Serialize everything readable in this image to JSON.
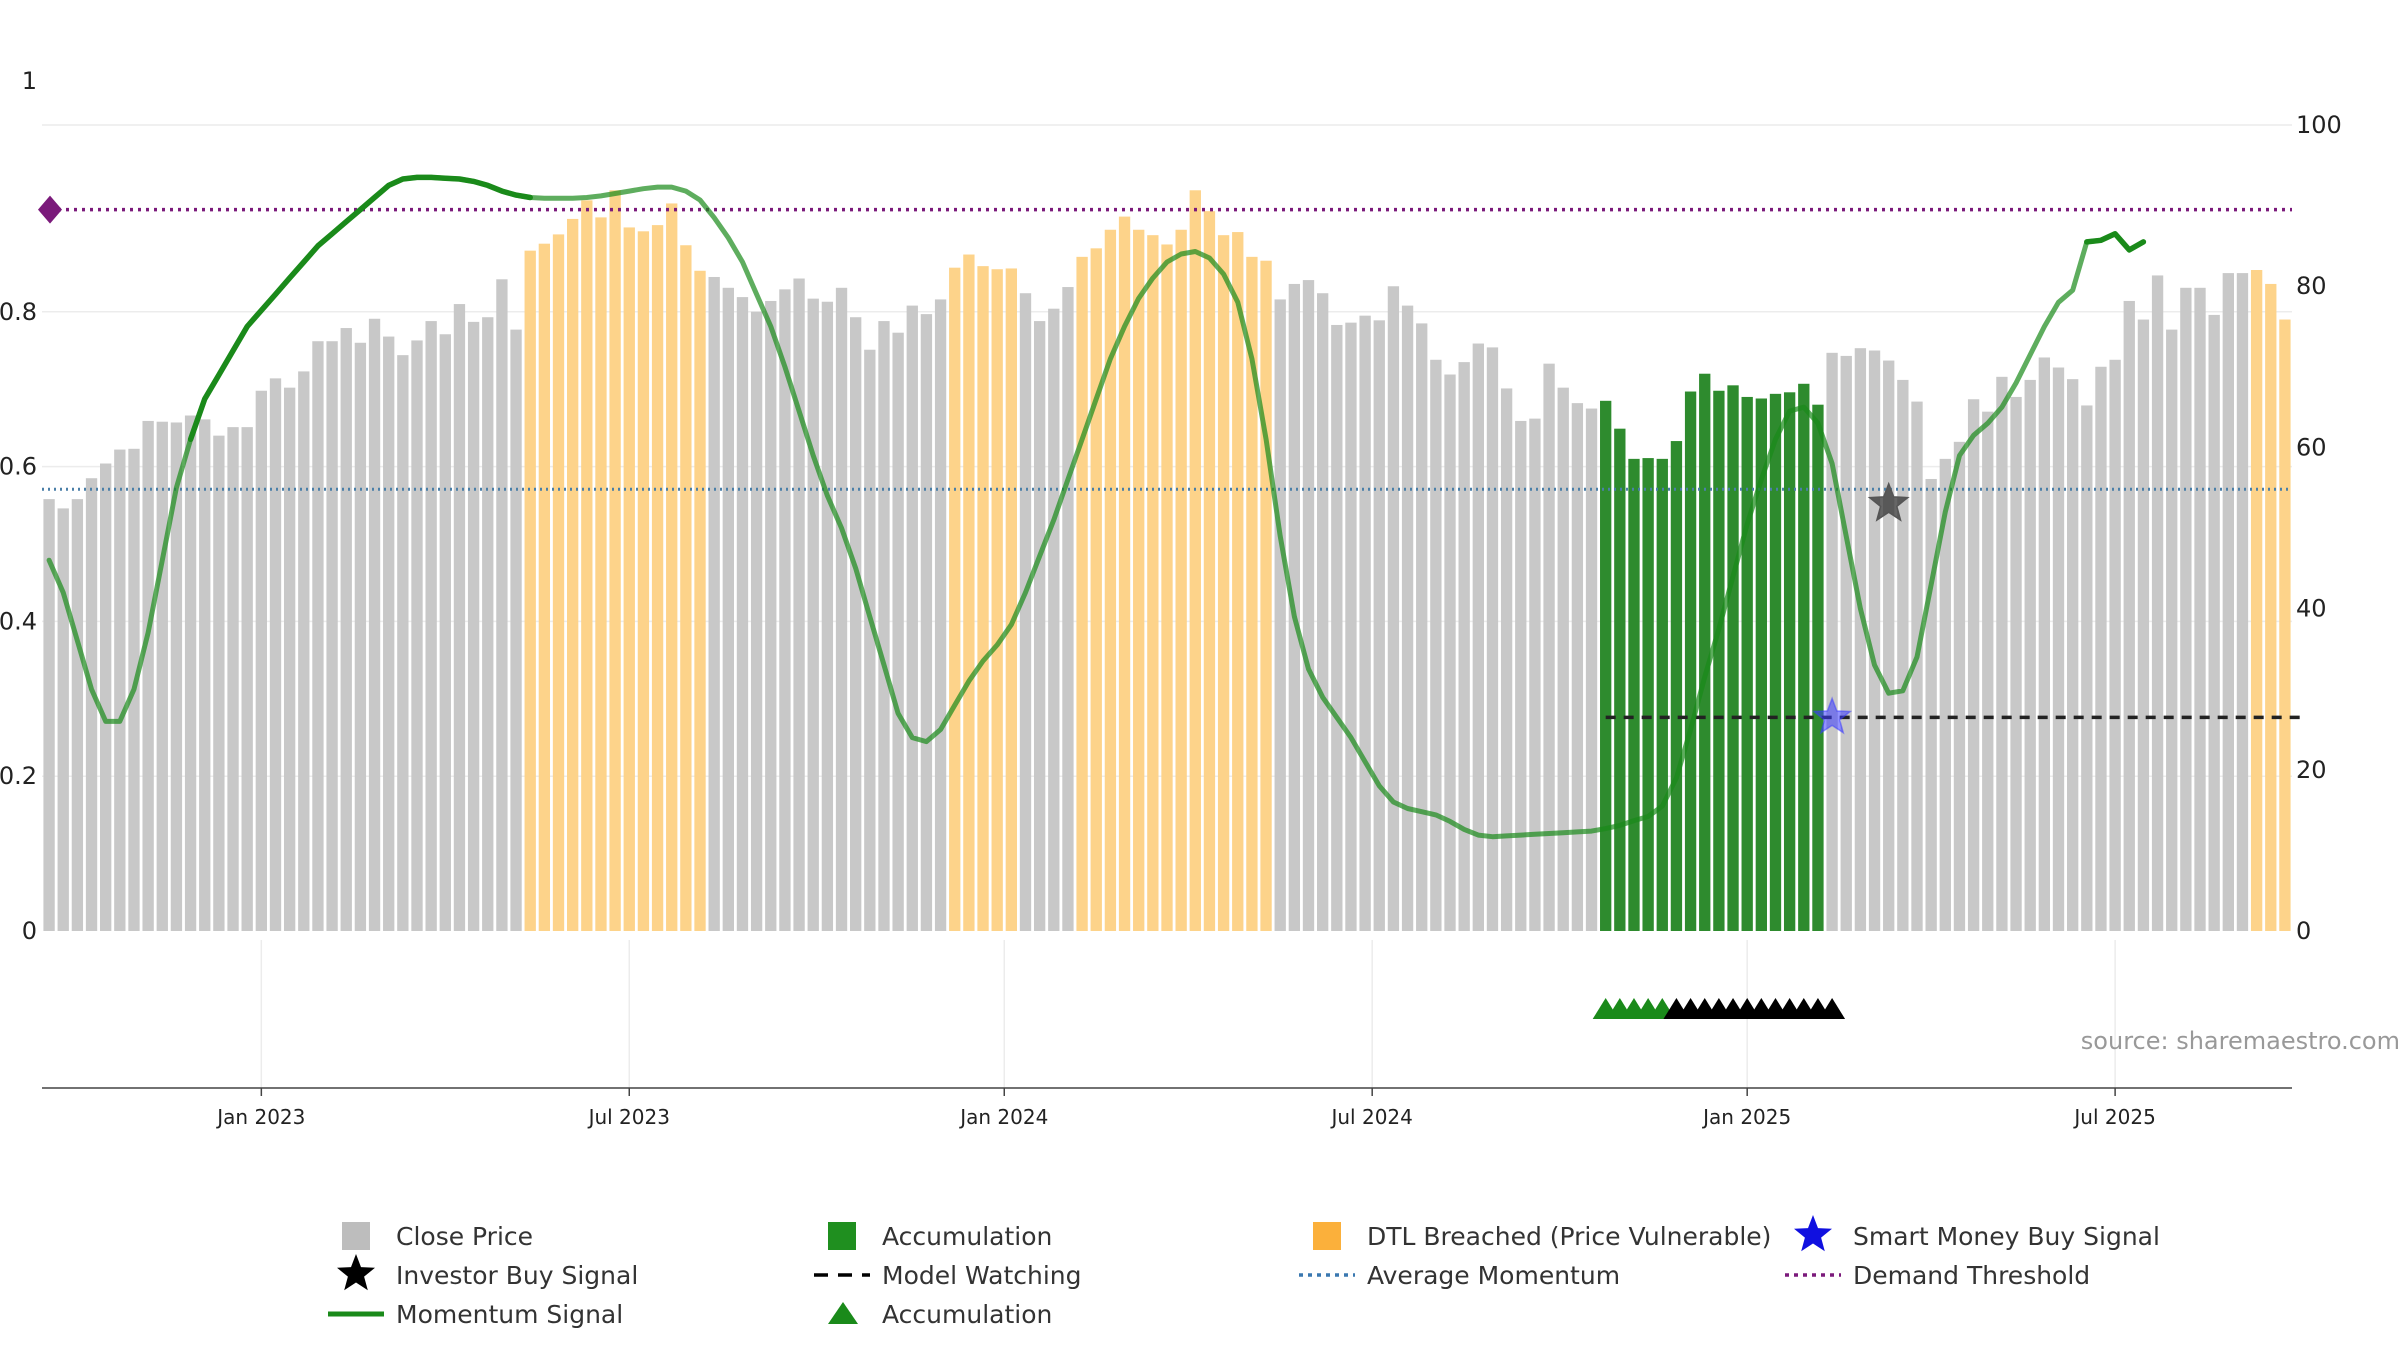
{
  "chart_data": {
    "type": "bar",
    "title": "",
    "source": "source: sharemaestro.com",
    "left_axis": {
      "ticks": [
        {
          "value": 0,
          "label": "0"
        },
        {
          "value": 0.2,
          "label": "0.2"
        },
        {
          "value": 0.4,
          "label": "0.4"
        },
        {
          "value": 0.6,
          "label": "0.6"
        },
        {
          "value": 0.8,
          "label": "0.8"
        },
        {
          "value": 1,
          "label": "1"
        }
      ],
      "range": [
        0,
        1.1
      ]
    },
    "right_axis": {
      "ticks": [
        {
          "value": 0,
          "label": "0"
        },
        {
          "value": 20,
          "label": "20"
        },
        {
          "value": 40,
          "label": "40"
        },
        {
          "value": 60,
          "label": "60"
        },
        {
          "value": 80,
          "label": "80"
        },
        {
          "value": 100,
          "label": "100"
        }
      ],
      "range": [
        0,
        100
      ]
    },
    "x_axis": {
      "ticks": [
        {
          "bar": 15.5,
          "label": "Jan 2023"
        },
        {
          "bar": 41.5,
          "label": "Jul 2023"
        },
        {
          "bar": 68,
          "label": "Jan 2024"
        },
        {
          "bar": 94,
          "label": "Jul 2024"
        },
        {
          "bar": 120.5,
          "label": "Jan 2025"
        },
        {
          "bar": 146.5,
          "label": "Jul 2025"
        }
      ]
    },
    "bar_values": [
      0.558,
      0.546,
      0.558,
      0.585,
      0.604,
      0.622,
      0.623,
      0.659,
      0.658,
      0.657,
      0.666,
      0.661,
      0.64,
      0.651,
      0.651,
      0.698,
      0.714,
      0.702,
      0.723,
      0.762,
      0.762,
      0.779,
      0.76,
      0.791,
      0.768,
      0.744,
      0.763,
      0.788,
      0.771,
      0.81,
      0.787,
      0.793,
      0.842,
      0.777,
      0.879,
      0.888,
      0.9,
      0.92,
      0.944,
      0.922,
      0.957,
      0.909,
      0.904,
      0.912,
      0.94,
      0.886,
      0.853,
      0.845,
      0.831,
      0.819,
      0.8,
      0.814,
      0.829,
      0.843,
      0.817,
      0.813,
      0.831,
      0.793,
      0.751,
      0.788,
      0.773,
      0.808,
      0.797,
      0.816,
      0.857,
      0.874,
      0.859,
      0.855,
      0.856,
      0.824,
      0.788,
      0.804,
      0.832,
      0.871,
      0.882,
      0.906,
      0.923,
      0.906,
      0.899,
      0.887,
      0.906,
      0.957,
      0.93,
      0.899,
      0.903,
      0.871,
      0.866,
      0.816,
      0.836,
      0.841,
      0.824,
      0.783,
      0.786,
      0.795,
      0.789,
      0.833,
      0.808,
      0.785,
      0.738,
      0.719,
      0.735,
      0.759,
      0.754,
      0.701,
      0.659,
      0.662,
      0.733,
      0.702,
      0.682,
      0.675,
      0.685,
      0.649,
      0.61,
      0.611,
      0.61,
      0.633,
      0.697,
      0.72,
      0.698,
      0.705,
      0.69,
      0.688,
      0.694,
      0.696,
      0.707,
      0.68,
      0.747,
      0.743,
      0.753,
      0.75,
      0.737,
      0.712,
      0.684,
      0.584,
      0.61,
      0.632,
      0.687,
      0.671,
      0.716,
      0.69,
      0.712,
      0.741,
      0.728,
      0.713,
      0.679,
      0.729,
      0.738,
      0.814,
      0.79,
      0.847,
      0.777,
      0.831,
      0.831,
      0.796,
      0.85,
      0.85,
      0.854,
      0.836,
      0.79
    ],
    "bar_categories": [
      "Close Price",
      "Accumulation",
      "DTL Breached (Price Vulnerable)"
    ],
    "bar_category_runs": [
      {
        "from": 0,
        "to": 33,
        "category": "Close Price"
      },
      {
        "from": 34,
        "to": 46,
        "category": "DTL Breached (Price Vulnerable)"
      },
      {
        "from": 47,
        "to": 63,
        "category": "Close Price"
      },
      {
        "from": 64,
        "to": 68,
        "category": "DTL Breached (Price Vulnerable)"
      },
      {
        "from": 69,
        "to": 72,
        "category": "Close Price"
      },
      {
        "from": 73,
        "to": 86,
        "category": "DTL Breached (Price Vulnerable)"
      },
      {
        "from": 87,
        "to": 109,
        "category": "Close Price"
      },
      {
        "from": 110,
        "to": 125,
        "category": "Accumulation"
      },
      {
        "from": 126,
        "to": 155,
        "category": "Close Price"
      },
      {
        "from": 156,
        "to": 158,
        "category": "DTL Breached (Price Vulnerable)"
      },
      {
        "from": 159,
        "to": 159,
        "category": "Close Price"
      }
    ],
    "momentum_signal": [
      [
        0,
        46
      ],
      [
        1,
        42
      ],
      [
        2,
        36
      ],
      [
        3,
        30
      ],
      [
        4,
        26
      ],
      [
        5,
        26
      ],
      [
        6,
        30
      ],
      [
        7,
        37
      ],
      [
        8,
        46
      ],
      [
        9,
        55
      ],
      [
        10,
        61
      ],
      [
        11,
        66
      ],
      [
        12,
        69
      ],
      [
        13,
        72
      ],
      [
        14,
        75
      ],
      [
        15,
        77
      ],
      [
        16,
        79
      ],
      [
        17,
        81
      ],
      [
        18,
        83
      ],
      [
        19,
        85
      ],
      [
        20,
        86.5
      ],
      [
        21,
        88
      ],
      [
        22,
        89.5
      ],
      [
        23,
        91
      ],
      [
        24,
        92.5
      ],
      [
        25,
        93.3
      ],
      [
        26,
        93.5
      ],
      [
        27,
        93.5
      ],
      [
        28,
        93.4
      ],
      [
        29,
        93.3
      ],
      [
        30,
        93
      ],
      [
        31,
        92.5
      ],
      [
        32,
        91.8
      ],
      [
        33,
        91.3
      ],
      [
        34,
        91
      ],
      [
        35,
        90.9
      ],
      [
        36,
        90.9
      ],
      [
        37,
        90.9
      ],
      [
        38,
        91
      ],
      [
        39,
        91.2
      ],
      [
        40,
        91.5
      ],
      [
        41,
        91.8
      ],
      [
        42,
        92.1
      ],
      [
        43,
        92.3
      ],
      [
        44,
        92.3
      ],
      [
        45,
        91.8
      ],
      [
        46,
        90.7
      ],
      [
        47,
        88.5
      ],
      [
        48,
        86
      ],
      [
        49,
        83
      ],
      [
        50,
        79
      ],
      [
        51,
        75
      ],
      [
        52,
        70
      ],
      [
        53,
        64.5
      ],
      [
        54,
        59
      ],
      [
        55,
        54
      ],
      [
        56,
        50
      ],
      [
        57,
        45
      ],
      [
        58,
        39
      ],
      [
        59,
        33
      ],
      [
        60,
        27
      ],
      [
        61,
        24
      ],
      [
        62,
        23.5
      ],
      [
        63,
        25
      ],
      [
        64,
        28
      ],
      [
        65,
        31
      ],
      [
        66,
        33.5
      ],
      [
        67,
        35.5
      ],
      [
        68,
        38
      ],
      [
        69,
        42
      ],
      [
        70,
        46.5
      ],
      [
        71,
        51
      ],
      [
        72,
        56
      ],
      [
        73,
        61
      ],
      [
        74,
        66
      ],
      [
        75,
        71
      ],
      [
        76,
        75
      ],
      [
        77,
        78.5
      ],
      [
        78,
        81
      ],
      [
        79,
        83
      ],
      [
        80,
        84
      ],
      [
        81,
        84.3
      ],
      [
        82,
        83.5
      ],
      [
        83,
        81.5
      ],
      [
        84,
        78
      ],
      [
        85,
        71
      ],
      [
        86,
        61
      ],
      [
        87,
        49
      ],
      [
        88,
        39
      ],
      [
        89,
        32.5
      ],
      [
        90,
        29
      ],
      [
        91,
        26.5
      ],
      [
        92,
        24
      ],
      [
        93,
        21
      ],
      [
        94,
        18
      ],
      [
        95,
        16
      ],
      [
        96,
        15.2
      ],
      [
        97,
        14.8
      ],
      [
        98,
        14.4
      ],
      [
        99,
        13.6
      ],
      [
        100,
        12.6
      ],
      [
        101,
        11.9
      ],
      [
        102,
        11.7
      ],
      [
        103,
        11.8
      ],
      [
        104,
        11.9
      ],
      [
        105,
        12
      ],
      [
        106,
        12.1
      ],
      [
        107,
        12.2
      ],
      [
        108,
        12.3
      ],
      [
        109,
        12.4
      ],
      [
        110,
        12.7
      ],
      [
        111,
        13.1
      ],
      [
        112,
        13.7
      ],
      [
        113,
        14.2
      ],
      [
        114,
        15.5
      ],
      [
        115,
        19
      ],
      [
        116,
        25
      ],
      [
        117,
        31.5
      ],
      [
        118,
        37.5
      ],
      [
        119,
        44
      ],
      [
        120,
        50.5
      ],
      [
        121,
        56
      ],
      [
        122,
        61
      ],
      [
        123,
        64.5
      ],
      [
        124,
        65
      ],
      [
        125,
        63
      ],
      [
        126,
        58
      ],
      [
        127,
        49
      ],
      [
        128,
        40
      ],
      [
        129,
        33
      ],
      [
        130,
        29.5
      ],
      [
        131,
        29.8
      ],
      [
        132,
        34
      ],
      [
        133,
        43
      ],
      [
        134,
        52
      ],
      [
        135,
        59
      ],
      [
        136,
        61.5
      ],
      [
        137,
        63
      ],
      [
        138,
        65
      ],
      [
        139,
        68
      ],
      [
        140,
        71.5
      ],
      [
        141,
        75
      ],
      [
        142,
        78
      ],
      [
        143,
        79.5
      ],
      [
        144,
        85.5
      ],
      [
        145,
        85.7
      ],
      [
        146,
        86.5
      ],
      [
        147,
        84.5
      ],
      [
        148,
        85.5
      ]
    ],
    "momentum_bold_ranges": [
      [
        10,
        34
      ],
      [
        144,
        148
      ]
    ],
    "average_momentum": 54.8,
    "demand_threshold": 89.5,
    "model_watching": {
      "from": 110,
      "to": 160,
      "value": 26.5
    },
    "smart_money_buy_signal": {
      "x": 126,
      "y": 26.5
    },
    "investor_buy_signal": {
      "x": 130,
      "y": 53
    },
    "accumulation_markers": {
      "green": [
        110,
        111,
        112,
        113,
        114
      ],
      "black": [
        115,
        116,
        117,
        118,
        119,
        120,
        121,
        122,
        123,
        124,
        125,
        126
      ]
    },
    "demand_threshold_marker": {
      "x": 0,
      "y": 89.5
    },
    "colors": {
      "close_price": "#c8c8c8",
      "accumulation": "#2e8b2e",
      "dtl_breached": "#fdd38a",
      "momentum": "#1a8a1a",
      "average_momentum": "#4a7fa8",
      "demand_threshold": "#7b1a7b",
      "smart_money": "#3a3aff",
      "investor_buy": "#333333",
      "model_watching": "#222222"
    },
    "grid": true,
    "legend_placement": "bottom",
    "legend": [
      {
        "label": "Close Price",
        "icon": "gray-square"
      },
      {
        "label": "Accumulation",
        "icon": "green-square"
      },
      {
        "label": "DTL Breached (Price Vulnerable)",
        "icon": "orange-square"
      },
      {
        "label": "Smart Money Buy Signal",
        "icon": "blue-star"
      },
      {
        "label": "Investor Buy Signal",
        "icon": "black-star"
      },
      {
        "label": "Model Watching",
        "icon": "black-dash"
      },
      {
        "label": "Average Momentum",
        "icon": "blue-dotted"
      },
      {
        "label": "Demand Threshold",
        "icon": "purple-dotted"
      },
      {
        "label": "Momentum Signal",
        "icon": "green-line"
      },
      {
        "label": "Accumulation",
        "icon": "green-triangle"
      }
    ]
  }
}
